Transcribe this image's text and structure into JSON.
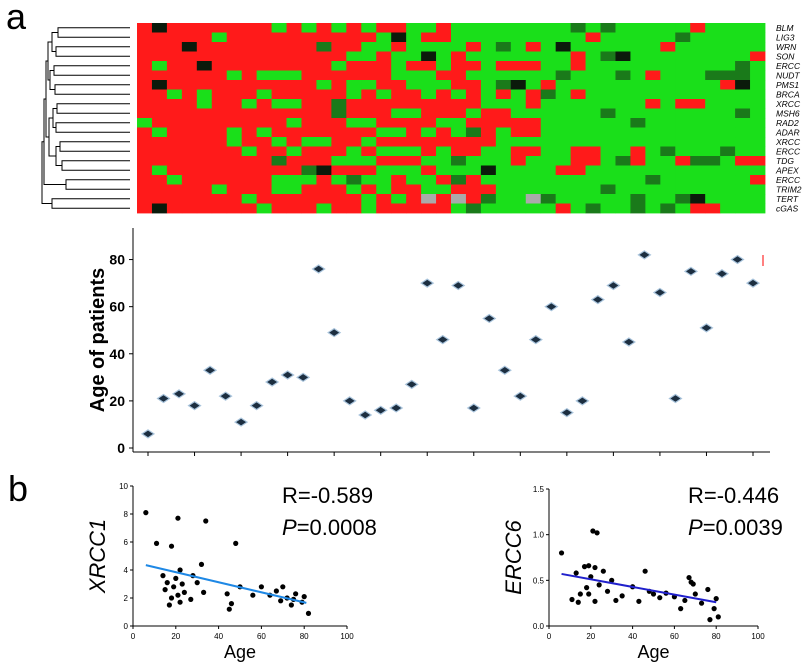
{
  "figure": {
    "label_a": "a",
    "label_b": "b"
  },
  "colors": {
    "high": "#ff1a1a",
    "low": "#1adf1a",
    "mid_dark": "#1a7a1a",
    "dark": "#0b1a0b",
    "na": "#aaaaaa",
    "line_xrcc1": "#1e88e5",
    "line_ercc6": "#2020cc"
  },
  "chart_data": [
    {
      "type": "heatmap",
      "rows": [
        "BLM",
        "LIG3",
        "WRN",
        "SON",
        "ERCC",
        "NUDT",
        "PMS1",
        "BRCA",
        "XRCC",
        "MSH6",
        "RAD2",
        "ADAR",
        "XRCC",
        "ERCC",
        "TDG",
        "APEX",
        "ERCC",
        "TRIM2",
        "TERT",
        "cGAS"
      ],
      "n_cols": 42,
      "dendrogram": "left"
    },
    {
      "type": "scatter",
      "ylabel": "Age of patients",
      "xlabel": "",
      "ylim": [
        0,
        90
      ],
      "yticks": [
        0,
        20,
        40,
        60,
        80
      ],
      "points": [
        {
          "x": 1,
          "y": 6
        },
        {
          "x": 2,
          "y": 21
        },
        {
          "x": 3,
          "y": 23
        },
        {
          "x": 4,
          "y": 18
        },
        {
          "x": 5,
          "y": 33
        },
        {
          "x": 6,
          "y": 22
        },
        {
          "x": 7,
          "y": 11
        },
        {
          "x": 8,
          "y": 18
        },
        {
          "x": 9,
          "y": 28
        },
        {
          "x": 10,
          "y": 31
        },
        {
          "x": 11,
          "y": 30
        },
        {
          "x": 12,
          "y": 76
        },
        {
          "x": 13,
          "y": 49
        },
        {
          "x": 14,
          "y": 20
        },
        {
          "x": 15,
          "y": 14
        },
        {
          "x": 16,
          "y": 16
        },
        {
          "x": 17,
          "y": 17
        },
        {
          "x": 18,
          "y": 27
        },
        {
          "x": 19,
          "y": 70
        },
        {
          "x": 20,
          "y": 46
        },
        {
          "x": 21,
          "y": 69
        },
        {
          "x": 22,
          "y": 17
        },
        {
          "x": 23,
          "y": 55
        },
        {
          "x": 24,
          "y": 33
        },
        {
          "x": 25,
          "y": 22
        },
        {
          "x": 26,
          "y": 46
        },
        {
          "x": 27,
          "y": 60
        },
        {
          "x": 28,
          "y": 15
        },
        {
          "x": 29,
          "y": 20
        },
        {
          "x": 30,
          "y": 63
        },
        {
          "x": 31,
          "y": 69
        },
        {
          "x": 32,
          "y": 45
        },
        {
          "x": 33,
          "y": 82
        },
        {
          "x": 34,
          "y": 66
        },
        {
          "x": 35,
          "y": 21
        },
        {
          "x": 36,
          "y": 75
        },
        {
          "x": 37,
          "y": 51
        },
        {
          "x": 38,
          "y": 74
        },
        {
          "x": 39,
          "y": 80
        },
        {
          "x": 40,
          "y": 70
        }
      ]
    },
    {
      "type": "scatter",
      "ylabel": "XRCC1",
      "xlabel": "Age",
      "xlim": [
        0,
        100
      ],
      "ylim": [
        0,
        10
      ],
      "xticks": [
        0,
        20,
        40,
        60,
        80,
        100
      ],
      "yticks": [
        0,
        2,
        4,
        6,
        8,
        10
      ],
      "stat_r": "R=-0.589",
      "stat_p_symbol": "P",
      "stat_p_value": "=0.0008",
      "regression": {
        "x": [
          6,
          81
        ],
        "y": [
          4.35,
          1.65
        ]
      },
      "points": [
        {
          "x": 6,
          "y": 8.1
        },
        {
          "x": 11,
          "y": 5.9
        },
        {
          "x": 14,
          "y": 3.6
        },
        {
          "x": 15,
          "y": 2.6
        },
        {
          "x": 16,
          "y": 3.1
        },
        {
          "x": 17,
          "y": 1.5
        },
        {
          "x": 18,
          "y": 5.7
        },
        {
          "x": 18,
          "y": 2.0
        },
        {
          "x": 19,
          "y": 2.8
        },
        {
          "x": 20,
          "y": 3.4
        },
        {
          "x": 21,
          "y": 2.2
        },
        {
          "x": 21,
          "y": 7.7
        },
        {
          "x": 22,
          "y": 4.0
        },
        {
          "x": 23,
          "y": 3.0
        },
        {
          "x": 22,
          "y": 1.7
        },
        {
          "x": 24,
          "y": 2.4
        },
        {
          "x": 27,
          "y": 1.9
        },
        {
          "x": 28,
          "y": 3.6
        },
        {
          "x": 30,
          "y": 3.1
        },
        {
          "x": 32,
          "y": 4.4
        },
        {
          "x": 33,
          "y": 2.4
        },
        {
          "x": 34,
          "y": 7.5
        },
        {
          "x": 44,
          "y": 2.3
        },
        {
          "x": 45,
          "y": 1.2
        },
        {
          "x": 46,
          "y": 1.6
        },
        {
          "x": 48,
          "y": 5.9
        },
        {
          "x": 50,
          "y": 2.8
        },
        {
          "x": 56,
          "y": 2.2
        },
        {
          "x": 60,
          "y": 2.8
        },
        {
          "x": 64,
          "y": 2.2
        },
        {
          "x": 67,
          "y": 2.5
        },
        {
          "x": 69,
          "y": 1.8
        },
        {
          "x": 70,
          "y": 2.8
        },
        {
          "x": 72,
          "y": 2.0
        },
        {
          "x": 74,
          "y": 1.5
        },
        {
          "x": 75,
          "y": 1.9
        },
        {
          "x": 76,
          "y": 2.3
        },
        {
          "x": 79,
          "y": 1.7
        },
        {
          "x": 80,
          "y": 2.1
        },
        {
          "x": 82,
          "y": 0.9
        }
      ]
    },
    {
      "type": "scatter",
      "ylabel": "ERCC6",
      "xlabel": "Age",
      "xlim": [
        0,
        100
      ],
      "ylim": [
        0,
        1.5
      ],
      "xticks": [
        0,
        20,
        40,
        60,
        80,
        100
      ],
      "yticks": [
        0.0,
        0.5,
        1.0,
        1.5
      ],
      "stat_r": "R=-0.446",
      "stat_p_symbol": "P",
      "stat_p_value": "=0.0039",
      "regression": {
        "x": [
          6,
          80
        ],
        "y": [
          0.57,
          0.26
        ]
      },
      "points": [
        {
          "x": 6,
          "y": 0.8
        },
        {
          "x": 11,
          "y": 0.29
        },
        {
          "x": 13,
          "y": 0.58
        },
        {
          "x": 14,
          "y": 0.26
        },
        {
          "x": 15,
          "y": 0.35
        },
        {
          "x": 17,
          "y": 0.65
        },
        {
          "x": 18,
          "y": 0.42
        },
        {
          "x": 19,
          "y": 0.66
        },
        {
          "x": 19,
          "y": 0.35
        },
        {
          "x": 20,
          "y": 0.54
        },
        {
          "x": 21,
          "y": 1.04
        },
        {
          "x": 22,
          "y": 0.64
        },
        {
          "x": 23,
          "y": 1.02
        },
        {
          "x": 22,
          "y": 0.27
        },
        {
          "x": 24,
          "y": 0.45
        },
        {
          "x": 26,
          "y": 0.6
        },
        {
          "x": 28,
          "y": 0.38
        },
        {
          "x": 30,
          "y": 0.5
        },
        {
          "x": 32,
          "y": 0.28
        },
        {
          "x": 35,
          "y": 0.33
        },
        {
          "x": 40,
          "y": 0.43
        },
        {
          "x": 43,
          "y": 0.27
        },
        {
          "x": 46,
          "y": 0.6
        },
        {
          "x": 48,
          "y": 0.38
        },
        {
          "x": 50,
          "y": 0.35
        },
        {
          "x": 53,
          "y": 0.31
        },
        {
          "x": 56,
          "y": 0.36
        },
        {
          "x": 60,
          "y": 0.32
        },
        {
          "x": 63,
          "y": 0.19
        },
        {
          "x": 65,
          "y": 0.28
        },
        {
          "x": 67,
          "y": 0.53
        },
        {
          "x": 68,
          "y": 0.48
        },
        {
          "x": 69,
          "y": 0.46
        },
        {
          "x": 70,
          "y": 0.35
        },
        {
          "x": 73,
          "y": 0.25
        },
        {
          "x": 76,
          "y": 0.4
        },
        {
          "x": 77,
          "y": 0.07
        },
        {
          "x": 79,
          "y": 0.19
        },
        {
          "x": 80,
          "y": 0.3
        },
        {
          "x": 81,
          "y": 0.1
        }
      ]
    }
  ]
}
